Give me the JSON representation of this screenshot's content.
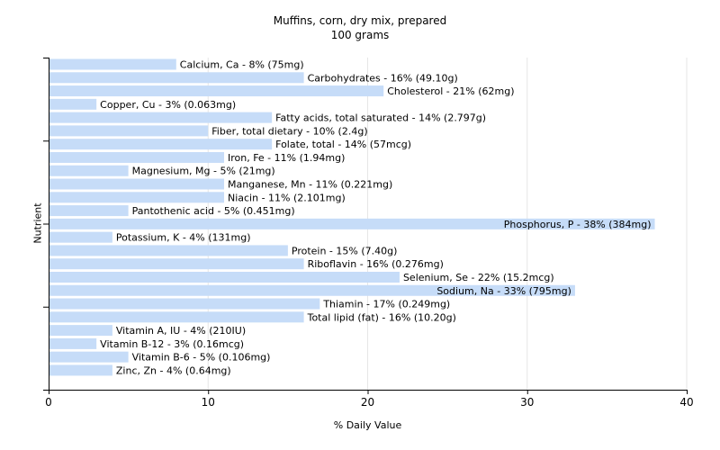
{
  "chart_data": {
    "type": "bar",
    "orientation": "horizontal",
    "title": "Muffins, corn, dry mix, prepared",
    "subtitle": "100 grams",
    "xlabel": "% Daily Value",
    "ylabel": "Nutrient",
    "xlim": [
      0,
      40
    ],
    "xticks": [
      0,
      10,
      20,
      30,
      40
    ],
    "grid": true,
    "bar_color": "#c6dcf8",
    "categories": [
      "Calcium, Ca",
      "Carbohydrates",
      "Cholesterol",
      "Copper, Cu",
      "Fatty acids, total saturated",
      "Fiber, total dietary",
      "Folate, total",
      "Iron, Fe",
      "Magnesium, Mg",
      "Manganese, Mn",
      "Niacin",
      "Pantothenic acid",
      "Phosphorus, P",
      "Potassium, K",
      "Protein",
      "Riboflavin",
      "Selenium, Se",
      "Sodium, Na",
      "Thiamin",
      "Total lipid (fat)",
      "Vitamin A, IU",
      "Vitamin B-12",
      "Vitamin B-6",
      "Zinc, Zn"
    ],
    "values": [
      8,
      16,
      21,
      3,
      14,
      10,
      14,
      11,
      5,
      11,
      11,
      5,
      38,
      4,
      15,
      16,
      22,
      33,
      17,
      16,
      4,
      3,
      5,
      4
    ],
    "labels": [
      "Calcium, Ca - 8% (75mg)",
      "Carbohydrates - 16% (49.10g)",
      "Cholesterol - 21% (62mg)",
      "Copper, Cu - 3% (0.063mg)",
      "Fatty acids, total saturated - 14% (2.797g)",
      "Fiber, total dietary - 10% (2.4g)",
      "Folate, total - 14% (57mcg)",
      "Iron, Fe - 11% (1.94mg)",
      "Magnesium, Mg - 5% (21mg)",
      "Manganese, Mn - 11% (0.221mg)",
      "Niacin - 11% (2.101mg)",
      "Pantothenic acid - 5% (0.451mg)",
      "Phosphorus, P - 38% (384mg)",
      "Potassium, K - 4% (131mg)",
      "Protein - 15% (7.40g)",
      "Riboflavin - 16% (0.276mg)",
      "Selenium, Se - 22% (15.2mcg)",
      "Sodium, Na - 33% (795mg)",
      "Thiamin - 17% (0.249mg)",
      "Total lipid (fat) - 16% (10.20g)",
      "Vitamin A, IU - 4% (210IU)",
      "Vitamin B-12 - 3% (0.16mcg)",
      "Vitamin B-6 - 5% (0.106mg)",
      "Zinc, Zn - 4% (0.64mg)"
    ]
  }
}
